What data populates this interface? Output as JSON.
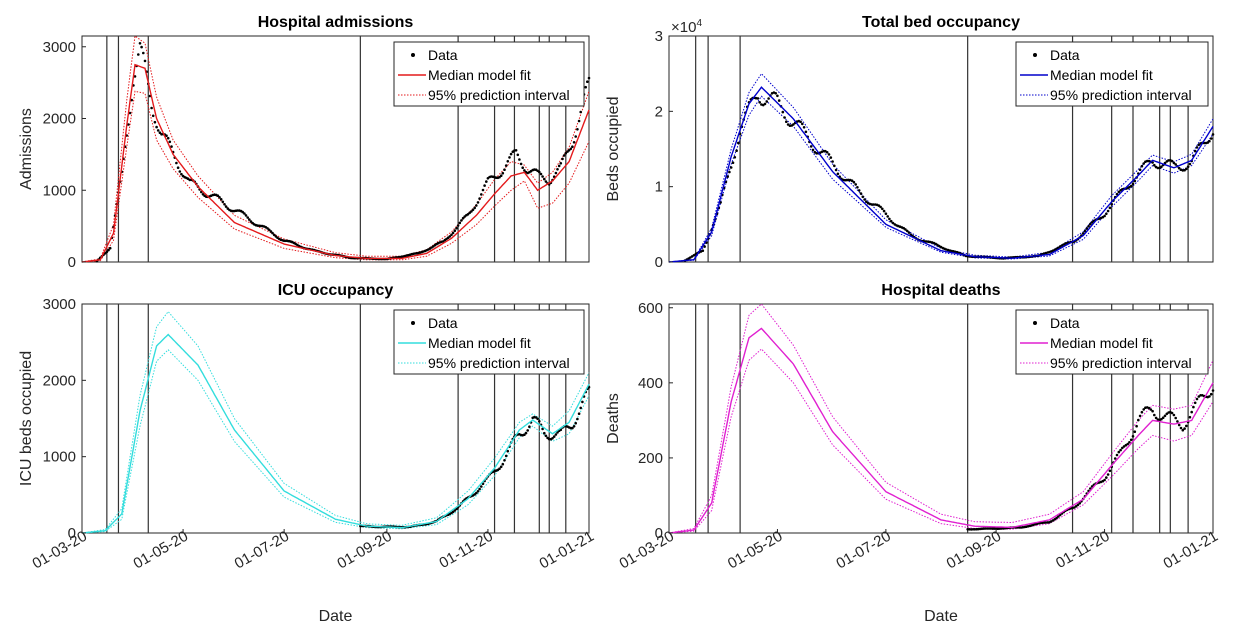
{
  "chart_data": [
    {
      "type": "line",
      "title": "Hospital admissions",
      "xlabel": "",
      "ylabel": "Admissions",
      "ylim": [
        0,
        3150
      ],
      "yticks": [
        0,
        1000,
        2000,
        3000
      ],
      "ytick_labels": [
        "0",
        "1000",
        "2000",
        "3000"
      ],
      "y_multiplier": "",
      "xlim": [
        "2020-03-01",
        "2021-01-01"
      ],
      "xticks": [],
      "xtick_labels": [],
      "color": "#e41a1c",
      "legend": [
        "Data",
        "Median model fit",
        "95% prediction interval"
      ],
      "legend_position": "top-right",
      "intervention_dates": [
        "2020-03-16",
        "2020-03-23",
        "2020-04-10",
        "2020-08-16",
        "2020-10-14",
        "2020-11-05",
        "2020-11-17",
        "2020-12-02",
        "2020-12-08",
        "2020-12-18"
      ],
      "data_start": "2020-03-10",
      "fit": {
        "x": [
          "2020-03-01",
          "2020-03-12",
          "2020-03-20",
          "2020-03-28",
          "2020-04-02",
          "2020-04-08",
          "2020-04-15",
          "2020-04-25",
          "2020-05-10",
          "2020-06-01",
          "2020-07-01",
          "2020-08-01",
          "2020-08-20",
          "2020-09-10",
          "2020-09-25",
          "2020-10-10",
          "2020-10-25",
          "2020-11-05",
          "2020-11-15",
          "2020-11-23",
          "2020-12-01",
          "2020-12-10",
          "2020-12-20",
          "2021-01-01"
        ],
        "median": [
          0,
          30,
          400,
          1900,
          2750,
          2700,
          2000,
          1500,
          1050,
          550,
          250,
          90,
          50,
          50,
          120,
          330,
          650,
          950,
          1200,
          1250,
          1000,
          1130,
          1400,
          2120
        ],
        "upper": [
          0,
          45,
          520,
          2250,
          3150,
          3050,
          2300,
          1700,
          1200,
          650,
          320,
          130,
          80,
          80,
          170,
          420,
          800,
          1150,
          1400,
          1350,
          1100,
          1250,
          1600,
          2380
        ],
        "lower": [
          0,
          18,
          300,
          1600,
          2380,
          2350,
          1700,
          1300,
          900,
          460,
          190,
          60,
          30,
          30,
          80,
          260,
          520,
          780,
          1000,
          1130,
          750,
          820,
          1100,
          1680
        ]
      },
      "observed": {
        "x": [
          "2020-03-10",
          "2020-03-18",
          "2020-03-25",
          "2020-04-01",
          "2020-04-05",
          "2020-04-08",
          "2020-04-12",
          "2020-04-18",
          "2020-04-25",
          "2020-05-05",
          "2020-05-20",
          "2020-06-10",
          "2020-07-01",
          "2020-07-20",
          "2020-08-10",
          "2020-09-01",
          "2020-09-20",
          "2020-10-05",
          "2020-10-20",
          "2020-11-01",
          "2020-11-10",
          "2020-11-18",
          "2020-11-25",
          "2020-12-01",
          "2020-12-08",
          "2020-12-15",
          "2020-12-22",
          "2021-01-01"
        ],
        "y": [
          10,
          200,
          1200,
          2600,
          2950,
          2650,
          2200,
          1800,
          1500,
          1100,
          900,
          600,
          300,
          150,
          60,
          40,
          120,
          280,
          650,
          1100,
          1300,
          1500,
          1300,
          1200,
          1150,
          1300,
          1700,
          2450
        ]
      }
    },
    {
      "type": "line",
      "title": "Total bed occupancy",
      "xlabel": "",
      "ylabel": "Beds occupied",
      "ylim": [
        0,
        30000
      ],
      "yticks": [
        0,
        10000,
        20000,
        30000
      ],
      "ytick_labels": [
        "0",
        "1",
        "2",
        "3"
      ],
      "y_multiplier": "×10",
      "y_multiplier_exp": "4",
      "xlim": [
        "2020-03-01",
        "2021-01-01"
      ],
      "xticks": [],
      "xtick_labels": [],
      "color": "#0000cc",
      "legend": [
        "Data",
        "Median model fit",
        "95% prediction interval"
      ],
      "legend_position": "top-right",
      "intervention_dates": [
        "2020-03-16",
        "2020-03-23",
        "2020-04-10",
        "2020-08-16",
        "2020-10-14",
        "2020-11-05",
        "2020-11-17",
        "2020-12-02",
        "2020-12-08",
        "2020-12-18"
      ],
      "data_start": "2020-03-10",
      "fit": {
        "x": [
          "2020-03-01",
          "2020-03-15",
          "2020-03-25",
          "2020-04-05",
          "2020-04-15",
          "2020-04-22",
          "2020-05-10",
          "2020-06-01",
          "2020-07-01",
          "2020-08-01",
          "2020-08-20",
          "2020-09-10",
          "2020-10-01",
          "2020-10-20",
          "2020-11-05",
          "2020-11-20",
          "2020-11-28",
          "2020-12-10",
          "2020-12-20",
          "2021-01-01"
        ],
        "median": [
          0,
          300,
          4000,
          14000,
          21000,
          23200,
          19000,
          12000,
          5000,
          1500,
          700,
          500,
          1000,
          3500,
          8000,
          11500,
          13500,
          12500,
          13500,
          18000
        ],
        "upper": [
          0,
          350,
          4500,
          15000,
          22500,
          25000,
          20500,
          13000,
          5600,
          1800,
          900,
          650,
          1300,
          4000,
          8800,
          12300,
          14200,
          13300,
          14300,
          19000
        ],
        "lower": [
          0,
          250,
          3500,
          13000,
          19500,
          22000,
          18000,
          11000,
          4600,
          1300,
          550,
          400,
          800,
          3000,
          7300,
          10800,
          12800,
          11800,
          12800,
          17000
        ]
      },
      "observed": {
        "x": [
          "2020-03-10",
          "2020-03-20",
          "2020-03-30",
          "2020-04-10",
          "2020-04-20",
          "2020-05-01",
          "2020-05-20",
          "2020-06-15",
          "2020-07-15",
          "2020-08-15",
          "2020-09-05",
          "2020-09-25",
          "2020-10-15",
          "2020-11-01",
          "2020-11-15",
          "2020-11-28",
          "2020-12-10",
          "2020-12-20",
          "2021-01-01"
        ],
        "y": [
          200,
          1500,
          7500,
          17500,
          22500,
          21000,
          16000,
          9500,
          3500,
          800,
          500,
          800,
          2800,
          6500,
          10500,
          13500,
          12600,
          13200,
          17800
        ]
      }
    },
    {
      "type": "line",
      "title": "ICU occupancy",
      "xlabel": "Date",
      "ylabel": "ICU beds occupied",
      "ylim": [
        0,
        3000
      ],
      "yticks": [
        0,
        1000,
        2000,
        3000
      ],
      "ytick_labels": [
        "0",
        "1000",
        "2000",
        "3000"
      ],
      "y_multiplier": "",
      "xlim": [
        "2020-03-01",
        "2021-01-01"
      ],
      "xticks": [
        "2020-03-01",
        "2020-05-01",
        "2020-07-01",
        "2020-09-01",
        "2020-11-01",
        "2021-01-01"
      ],
      "xtick_labels": [
        "01-03-20",
        "01-05-20",
        "01-07-20",
        "01-09-20",
        "01-11-20",
        "01-01-21"
      ],
      "color": "#33dddd",
      "legend": [
        "Data",
        "Median model fit",
        "95% prediction interval"
      ],
      "legend_position": "top-right",
      "intervention_dates": [
        "2020-03-16",
        "2020-03-23",
        "2020-04-10",
        "2020-08-16",
        "2020-10-14",
        "2020-11-05",
        "2020-11-17",
        "2020-12-02",
        "2020-12-08",
        "2020-12-18"
      ],
      "data_start": "2020-08-16",
      "fit": {
        "x": [
          "2020-03-01",
          "2020-03-15",
          "2020-03-25",
          "2020-04-05",
          "2020-04-15",
          "2020-04-22",
          "2020-05-10",
          "2020-06-01",
          "2020-07-01",
          "2020-08-01",
          "2020-08-20",
          "2020-09-10",
          "2020-10-01",
          "2020-10-20",
          "2020-11-05",
          "2020-11-20",
          "2020-11-28",
          "2020-12-10",
          "2020-12-20",
          "2021-01-01"
        ],
        "median": [
          0,
          30,
          250,
          1600,
          2450,
          2600,
          2200,
          1350,
          550,
          180,
          90,
          70,
          150,
          450,
          850,
          1350,
          1480,
          1300,
          1450,
          1950
        ],
        "upper": [
          0,
          45,
          320,
          1800,
          2700,
          2900,
          2450,
          1500,
          650,
          230,
          120,
          100,
          200,
          550,
          980,
          1450,
          1560,
          1400,
          1600,
          2100
        ],
        "lower": [
          0,
          20,
          180,
          1400,
          2250,
          2400,
          2000,
          1200,
          470,
          140,
          70,
          55,
          110,
          370,
          750,
          1250,
          1400,
          1200,
          1300,
          1800
        ]
      },
      "observed": {
        "x": [
          "2020-08-16",
          "2020-09-01",
          "2020-09-15",
          "2020-10-01",
          "2020-10-15",
          "2020-11-01",
          "2020-11-10",
          "2020-11-20",
          "2020-11-28",
          "2020-12-05",
          "2020-12-15",
          "2020-12-22",
          "2021-01-01"
        ],
        "y": [
          90,
          80,
          80,
          150,
          350,
          700,
          950,
          1300,
          1480,
          1320,
          1280,
          1450,
          1820
        ]
      }
    },
    {
      "type": "line",
      "title": "Hospital deaths",
      "xlabel": "Date",
      "ylabel": "Deaths",
      "ylim": [
        0,
        610
      ],
      "yticks": [
        0,
        200,
        400,
        600
      ],
      "ytick_labels": [
        "0",
        "200",
        "400",
        "600"
      ],
      "y_multiplier": "",
      "xlim": [
        "2020-03-01",
        "2021-01-01"
      ],
      "xticks": [
        "2020-03-01",
        "2020-05-01",
        "2020-07-01",
        "2020-09-01",
        "2020-11-01",
        "2021-01-01"
      ],
      "xtick_labels": [
        "01-03-20",
        "01-05-20",
        "01-07-20",
        "01-09-20",
        "01-11-20",
        "01-01-21"
      ],
      "color": "#e020d0",
      "legend": [
        "Data",
        "Median model fit",
        "95% prediction interval"
      ],
      "legend_position": "top-right",
      "intervention_dates": [
        "2020-03-16",
        "2020-03-23",
        "2020-04-10",
        "2020-08-16",
        "2020-10-14",
        "2020-11-05",
        "2020-11-17",
        "2020-12-02",
        "2020-12-08",
        "2020-12-18"
      ],
      "data_start": "2020-08-16",
      "fit": {
        "x": [
          "2020-03-01",
          "2020-03-15",
          "2020-03-25",
          "2020-04-05",
          "2020-04-15",
          "2020-04-22",
          "2020-05-10",
          "2020-06-01",
          "2020-07-01",
          "2020-08-01",
          "2020-08-20",
          "2020-09-10",
          "2020-10-01",
          "2020-10-20",
          "2020-11-05",
          "2020-11-20",
          "2020-11-28",
          "2020-12-10",
          "2020-12-20",
          "2021-01-01"
        ],
        "median": [
          0,
          8,
          80,
          350,
          520,
          545,
          450,
          270,
          110,
          35,
          18,
          15,
          35,
          90,
          180,
          260,
          300,
          290,
          300,
          400
        ],
        "upper": [
          0,
          12,
          100,
          390,
          580,
          610,
          500,
          310,
          135,
          50,
          30,
          28,
          50,
          110,
          210,
          300,
          340,
          330,
          340,
          460
        ],
        "lower": [
          0,
          5,
          60,
          310,
          460,
          490,
          400,
          235,
          90,
          25,
          12,
          10,
          25,
          75,
          150,
          225,
          260,
          245,
          260,
          350
        ]
      },
      "observed": {
        "x": [
          "2020-08-16",
          "2020-09-01",
          "2020-09-15",
          "2020-10-01",
          "2020-10-15",
          "2020-11-01",
          "2020-11-10",
          "2020-11-20",
          "2020-11-28",
          "2020-12-05",
          "2020-12-15",
          "2020-12-22",
          "2021-01-01"
        ],
        "y": [
          10,
          12,
          15,
          30,
          70,
          150,
          210,
          300,
          330,
          310,
          290,
          330,
          400
        ]
      }
    }
  ]
}
